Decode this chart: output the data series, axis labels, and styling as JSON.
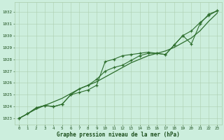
{
  "title": "Graphe pression niveau de la mer (hPa)",
  "hours": [
    0,
    1,
    2,
    3,
    4,
    5,
    6,
    7,
    8,
    9,
    10,
    11,
    12,
    13,
    14,
    15,
    16,
    17,
    18,
    19,
    20,
    21,
    22,
    23
  ],
  "ylim": [
    1022.5,
    1032.8
  ],
  "yticks": [
    1023,
    1024,
    1025,
    1026,
    1027,
    1028,
    1029,
    1030,
    1031,
    1032
  ],
  "smooth_line": [
    1023.0,
    1023.4,
    1023.8,
    1024.1,
    1024.4,
    1024.7,
    1025.1,
    1025.5,
    1025.8,
    1026.1,
    1026.5,
    1026.9,
    1027.3,
    1027.7,
    1028.0,
    1028.3,
    1028.5,
    1028.7,
    1029.0,
    1029.4,
    1029.8,
    1030.4,
    1031.2,
    1031.9
  ],
  "line1": [
    1023.0,
    1023.4,
    1023.9,
    1024.1,
    1024.0,
    1024.2,
    1025.0,
    1025.2,
    1025.4,
    1025.8,
    1027.8,
    1028.0,
    1028.3,
    1028.4,
    1028.5,
    1028.6,
    1028.5,
    1028.4,
    1029.2,
    1030.0,
    1030.4,
    1031.1,
    1031.7,
    1032.1
  ],
  "line2": [
    1023.0,
    1023.4,
    1023.9,
    1024.1,
    1024.0,
    1024.2,
    1025.0,
    1025.5,
    1025.8,
    1026.3,
    1027.0,
    1027.3,
    1027.5,
    1027.9,
    1028.3,
    1028.5,
    1028.5,
    1028.4,
    1029.2,
    1030.0,
    1029.3,
    1031.0,
    1031.8,
    1032.1
  ],
  "line_color": "#2d6e2d",
  "bg_color": "#cceedd",
  "grid_color": "#aaccaa",
  "text_color": "#1a4d1a",
  "title_color": "#1a4d1a"
}
